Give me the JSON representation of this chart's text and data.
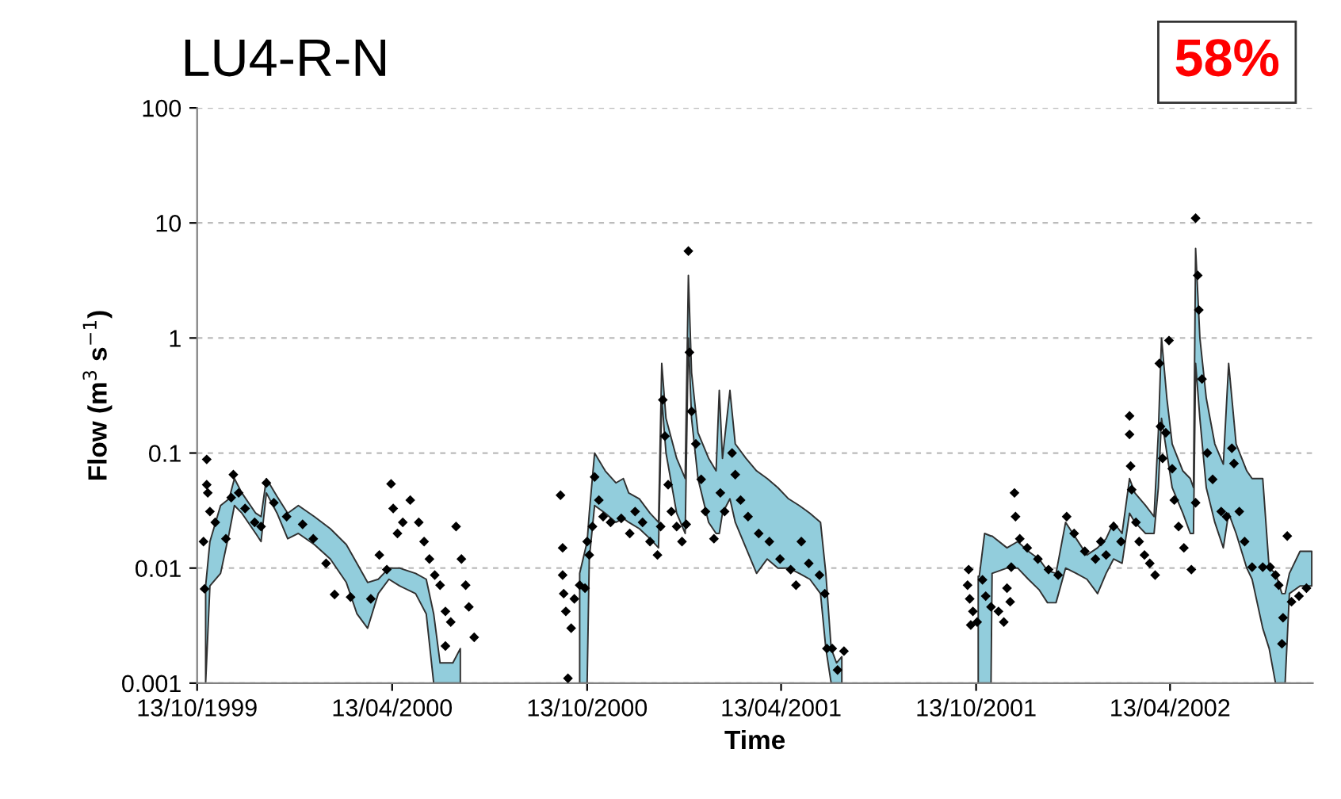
{
  "chart_data": {
    "type": "scatter",
    "title": "LU4-R-N",
    "xlabel": "Time",
    "ylabel": "Flow (m$^{3}$ s$^{−1}$)",
    "annotations": [
      "58%"
    ],
    "log": "y",
    "grid": "y",
    "legend": false,
    "ylim": [
      0.001,
      100
    ],
    "yticks": [
      {
        "value": 0.001,
        "label": "0.001"
      },
      {
        "value": 0.01,
        "label": "0.01"
      },
      {
        "value": 0.1,
        "label": "0.1"
      },
      {
        "value": 1,
        "label": "1"
      },
      {
        "value": 10,
        "label": "10"
      },
      {
        "value": 100,
        "label": "100"
      }
    ],
    "xlim": [
      "1999-10-13",
      "2002-08-25"
    ],
    "xticks": [
      {
        "value": "1999-10-13",
        "label": "13/10/1999"
      },
      {
        "value": "2000-04-13",
        "label": "13/04/2000"
      },
      {
        "value": "2000-10-13",
        "label": "13/10/2000"
      },
      {
        "value": "2001-04-13",
        "label": "13/04/2001"
      },
      {
        "value": "2001-10-13",
        "label": "13/10/2001"
      },
      {
        "value": "2002-04-13",
        "label": "13/04/2002"
      }
    ],
    "series": [
      {
        "type": "line",
        "color": "#92cddc",
        "values": [
          null,
          null,
          null,
          null,
          null,
          null,
          null,
          null,
          null,
          null,
          null,
          null,
          null,
          null,
          null,
          null,
          null,
          null,
          null,
          null,
          null,
          null,
          null,
          null,
          null,
          null,
          null,
          null,
          null,
          null,
          null,
          null,
          null,
          null,
          null,
          null,
          null,
          null,
          null,
          null,
          null,
          null,
          null,
          null,
          null,
          null,
          null,
          null,
          null,
          null,
          null,
          null,
          null,
          null,
          null,
          null,
          null,
          null,
          null,
          null,
          null,
          null,
          null,
          null,
          null,
          null,
          null,
          null,
          null,
          null,
          null,
          null,
          null,
          null,
          null,
          null,
          null,
          null,
          null,
          null,
          null,
          null,
          null,
          null,
          null,
          null,
          null,
          null,
          null,
          null,
          null,
          null,
          null,
          null,
          null,
          null,
          null,
          null,
          null,
          null,
          null,
          null,
          null,
          null,
          null,
          null,
          null,
          null,
          null,
          null,
          null
        ],
        "x": [
          "1999-10-21",
          "1999-10-25",
          "1999-11-04",
          "1999-11-12",
          "1999-11-17",
          "1999-11-24",
          "1999-12-07",
          "1999-12-12",
          "1999-12-17",
          "1999-12-27",
          "2000-01-06",
          "2000-01-16",
          "2000-01-31",
          "2000-02-15",
          "2000-03-01",
          "2000-03-11",
          "2000-03-21",
          "2000-03-31",
          "2000-04-10",
          "2000-04-20",
          "2000-05-05",
          "2000-05-15",
          "2000-05-22",
          "2000-05-28",
          "2000-06-09",
          "2000-06-16",
          "2000-08-01",
          "2000-10-06",
          "2000-10-13",
          "2000-10-15",
          "2000-10-20",
          "2000-10-30",
          "2000-11-09",
          "2000-11-16",
          "2000-11-21",
          "2000-12-01",
          "2000-12-11",
          "2000-12-19",
          "2000-12-22",
          "2000-12-26",
          "2001-01-05",
          "2001-01-13",
          "2001-01-16",
          "2001-01-19",
          "2001-01-25",
          "2001-02-04",
          "2001-02-11",
          "2001-02-14",
          "2001-02-17",
          "2001-02-24",
          "2001-03-01",
          "2001-03-11",
          "2001-03-21",
          "2001-03-31",
          "2001-04-10",
          "2001-04-20",
          "2001-04-30",
          "2001-05-10",
          "2001-05-20",
          "2001-05-25",
          "2001-05-30",
          "2001-06-04",
          "2001-06-09",
          "2001-08-01",
          "2001-10-15",
          "2001-10-16",
          "2001-10-21",
          "2001-10-27",
          "2001-10-28",
          "2001-11-11",
          "2001-11-21",
          "2001-12-01",
          "2001-12-11",
          "2001-12-19",
          "2001-12-27",
          "2002-01-05",
          "2002-01-15",
          "2002-01-25",
          "2002-02-04",
          "2002-02-12",
          "2002-02-19",
          "2002-02-27",
          "2002-03-06",
          "2002-03-11",
          "2002-03-21",
          "2002-03-29",
          "2002-04-02",
          "2002-04-05",
          "2002-04-10",
          "2002-04-15",
          "2002-04-25",
          "2002-05-02",
          "2002-05-05",
          "2002-05-07",
          "2002-05-11",
          "2002-05-17",
          "2002-05-25",
          "2002-06-02",
          "2002-06-07",
          "2002-06-14",
          "2002-06-24",
          "2002-06-29",
          "2002-07-09",
          "2002-07-15",
          "2002-07-21",
          "2002-07-27",
          "2002-07-30",
          "2002-08-03",
          "2002-08-13",
          "2002-08-18",
          "2002-08-24"
        ],
        "lower": [
          0.001,
          0.007,
          0.009,
          0.02,
          0.035,
          0.03,
          0.02,
          0.017,
          0.045,
          0.03,
          0.018,
          0.02,
          0.016,
          0.012,
          0.0075,
          0.004,
          0.003,
          0.006,
          0.008,
          0.007,
          0.006,
          0.004,
          0.001,
          0.001,
          0.001,
          0.001,
          null,
          0.001,
          0.001,
          0.012,
          0.035,
          0.03,
          0.025,
          0.027,
          0.025,
          0.022,
          0.018,
          0.015,
          0.3,
          0.1,
          0.03,
          0.02,
          1.0,
          0.2,
          0.06,
          0.025,
          0.02,
          0.02,
          0.03,
          0.04,
          0.025,
          0.015,
          0.009,
          0.012,
          0.01,
          0.01,
          0.009,
          0.008,
          0.006,
          0.002,
          0.001,
          0.001,
          0.001,
          null,
          0.001,
          0.001,
          0.001,
          0.001,
          0.009,
          0.01,
          0.01,
          0.008,
          0.0065,
          0.005,
          0.005,
          0.01,
          0.009,
          0.008,
          0.006,
          0.009,
          0.012,
          0.011,
          0.03,
          0.025,
          0.02,
          0.02,
          0.05,
          0.2,
          0.1,
          0.05,
          0.03,
          0.02,
          0.02,
          0.6,
          0.2,
          0.05,
          0.025,
          0.015,
          0.03,
          0.02,
          0.01,
          0.008,
          0.003,
          0.002,
          0.001,
          0.001,
          0.001,
          0.006,
          0.007,
          0.007,
          0.007
        ],
        "upper": [
          0.007,
          0.017,
          0.035,
          0.04,
          0.06,
          0.045,
          0.03,
          0.028,
          0.06,
          0.042,
          0.03,
          0.035,
          0.028,
          0.022,
          0.016,
          0.011,
          0.0075,
          0.008,
          0.01,
          0.01,
          0.009,
          0.008,
          0.004,
          0.0015,
          0.0015,
          0.002,
          null,
          0.009,
          0.017,
          0.03,
          0.1,
          0.07,
          0.055,
          0.06,
          0.045,
          0.04,
          0.03,
          0.025,
          0.6,
          0.2,
          0.09,
          0.06,
          3.5,
          0.5,
          0.15,
          0.09,
          0.07,
          0.35,
          0.09,
          0.35,
          0.12,
          0.09,
          0.07,
          0.06,
          0.05,
          0.04,
          0.035,
          0.03,
          0.025,
          0.009,
          0.002,
          0.0015,
          0.0017,
          null,
          0.0085,
          0.0085,
          0.02,
          0.019,
          0.019,
          0.015,
          0.017,
          0.014,
          0.012,
          0.0095,
          0.009,
          0.025,
          0.018,
          0.013,
          0.015,
          0.018,
          0.025,
          0.02,
          0.06,
          0.045,
          0.035,
          0.028,
          0.15,
          1.0,
          0.3,
          0.12,
          0.07,
          0.06,
          0.05,
          6.0,
          1.0,
          0.3,
          0.12,
          0.08,
          0.6,
          0.12,
          0.07,
          0.06,
          0.06,
          0.01,
          0.009,
          0.006,
          0.006,
          0.009,
          0.014,
          0.014,
          0.014
        ]
      },
      {
        "color": "#000000",
        "marker": "diamond",
        "x": [
          "1999-10-20",
          "1999-10-19",
          "1999-10-22",
          "1999-10-22",
          "1999-10-23",
          "1999-10-25",
          "1999-10-30",
          "1999-11-09",
          "1999-11-14",
          "1999-11-16",
          "1999-11-21",
          "1999-11-27",
          "1999-12-06",
          "1999-12-12",
          "1999-12-17",
          "1999-12-24",
          "2000-01-05",
          "2000-01-20",
          "2000-01-30",
          "2000-02-11",
          "2000-02-19",
          "2000-03-05",
          "2000-03-24",
          "2000-04-01",
          "2000-04-08",
          "2000-04-12",
          "2000-04-14",
          "2000-04-18",
          "2000-04-23",
          "2000-04-30",
          "2000-05-08",
          "2000-05-13",
          "2000-05-18",
          "2000-05-23",
          "2000-05-28",
          "2000-06-02",
          "2000-06-02",
          "2000-06-07",
          "2000-06-12",
          "2000-06-17",
          "2000-06-21",
          "2000-06-24",
          "2000-06-29",
          "2000-09-18",
          "2000-09-20",
          "2000-09-20",
          "2000-09-21",
          "2000-09-23",
          "2000-09-28",
          "2000-09-25",
          "2000-10-01",
          "2000-10-06",
          "2000-10-11",
          "2000-10-13",
          "2000-10-15",
          "2000-10-18",
          "2000-10-20",
          "2000-10-24",
          "2000-10-28",
          "2000-11-04",
          "2000-11-14",
          "2000-11-22",
          "2000-11-27",
          "2000-12-04",
          "2000-12-11",
          "2000-12-18",
          "2000-12-21",
          "2000-12-23",
          "2000-12-25",
          "2000-12-28",
          "2000-12-31",
          "2001-01-05",
          "2001-01-10",
          "2001-01-14",
          "2001-01-16",
          "2001-01-17",
          "2001-01-19",
          "2001-01-23",
          "2001-01-28",
          "2001-02-01",
          "2001-02-09",
          "2001-02-15",
          "2001-02-19",
          "2001-02-26",
          "2001-03-01",
          "2001-03-06",
          "2001-03-13",
          "2001-03-23",
          "2001-04-02",
          "2001-04-12",
          "2001-04-22",
          "2001-04-27",
          "2001-05-02",
          "2001-05-09",
          "2001-05-19",
          "2001-05-24",
          "2001-05-26",
          "2001-05-31",
          "2001-06-05",
          "2001-06-11",
          "2001-10-06",
          "2001-10-05",
          "2001-10-07",
          "2001-10-10",
          "2001-10-08",
          "2001-10-14",
          "2001-10-19",
          "2001-10-22",
          "2001-10-27",
          "2001-11-03",
          "2001-11-08",
          "2001-11-11",
          "2001-11-14",
          "2001-11-15",
          "2001-11-18",
          "2001-11-19",
          "2001-11-23",
          "2001-11-30",
          "2001-12-10",
          "2001-12-20",
          "2001-12-29",
          "2002-01-06",
          "2002-01-13",
          "2002-01-23",
          "2002-02-02",
          "2002-02-07",
          "2002-02-12",
          "2002-02-19",
          "2002-02-26",
          "2002-03-06",
          "2002-03-06",
          "2002-03-07",
          "2002-03-08",
          "2002-03-12",
          "2002-03-15",
          "2002-03-20",
          "2002-03-25",
          "2002-03-30",
          "2002-04-03",
          "2002-04-04",
          "2002-04-06",
          "2002-04-09",
          "2002-04-12",
          "2002-04-15",
          "2002-04-17",
          "2002-04-21",
          "2002-04-26",
          "2002-05-03",
          "2002-05-07",
          "2002-05-07",
          "2002-05-09",
          "2002-05-10",
          "2002-05-13",
          "2002-05-18",
          "2002-05-23",
          "2002-05-31",
          "2002-06-05",
          "2002-06-10",
          "2002-06-12",
          "2002-06-17",
          "2002-06-22",
          "2002-06-29",
          "2002-07-09",
          "2002-07-16",
          "2002-07-21",
          "2002-07-24",
          "2002-08-01",
          "2002-07-28",
          "2002-07-27",
          "2002-08-05",
          "2002-08-12",
          "2002-08-19"
        ],
        "values": [
          0.0066,
          0.017,
          0.088,
          0.053,
          0.045,
          0.031,
          0.025,
          0.018,
          0.041,
          0.065,
          0.045,
          0.033,
          0.025,
          0.023,
          0.055,
          0.037,
          0.028,
          0.024,
          0.018,
          0.011,
          0.0059,
          0.0056,
          0.0054,
          0.013,
          0.0097,
          0.054,
          0.033,
          0.02,
          0.025,
          0.039,
          0.025,
          0.017,
          0.012,
          0.0087,
          0.0071,
          0.0042,
          0.0021,
          0.0034,
          0.023,
          0.012,
          0.0071,
          0.0046,
          0.0025,
          0.043,
          0.015,
          0.0087,
          0.006,
          0.0042,
          0.003,
          0.0011,
          0.0054,
          0.0071,
          0.0067,
          0.017,
          0.013,
          0.023,
          0.062,
          0.039,
          0.028,
          0.025,
          0.027,
          0.02,
          0.031,
          0.025,
          0.017,
          0.013,
          0.023,
          0.29,
          0.14,
          0.053,
          0.031,
          0.023,
          0.017,
          0.024,
          5.7,
          0.75,
          0.23,
          0.12,
          0.059,
          0.031,
          0.018,
          0.045,
          0.031,
          0.1,
          0.065,
          0.039,
          0.028,
          0.02,
          0.017,
          0.012,
          0.0097,
          0.0071,
          0.017,
          0.011,
          0.0087,
          0.006,
          0.002,
          0.002,
          0.0013,
          0.0019,
          0.0097,
          0.0071,
          0.0054,
          0.0042,
          0.0032,
          0.0034,
          0.0079,
          0.0057,
          0.0046,
          0.0042,
          0.0034,
          0.0067,
          0.0051,
          0.0102,
          0.045,
          0.028,
          0.018,
          0.015,
          0.012,
          0.0097,
          0.0087,
          0.028,
          0.02,
          0.014,
          0.012,
          0.017,
          0.013,
          0.023,
          0.017,
          0.21,
          0.145,
          0.077,
          0.048,
          0.025,
          0.017,
          0.013,
          0.011,
          0.0087,
          0.6,
          0.17,
          0.09,
          0.15,
          0.95,
          0.073,
          0.039,
          0.023,
          0.015,
          0.0097,
          0.037,
          11,
          3.5,
          1.75,
          0.44,
          0.1,
          0.059,
          0.031,
          0.028,
          0.11,
          0.081,
          0.031,
          0.017,
          0.0102,
          0.0102,
          0.0102,
          0.0087,
          0.0071,
          0.019,
          0.0037,
          0.0022,
          0.0051,
          0.0057,
          0.0067
        ]
      }
    ]
  }
}
